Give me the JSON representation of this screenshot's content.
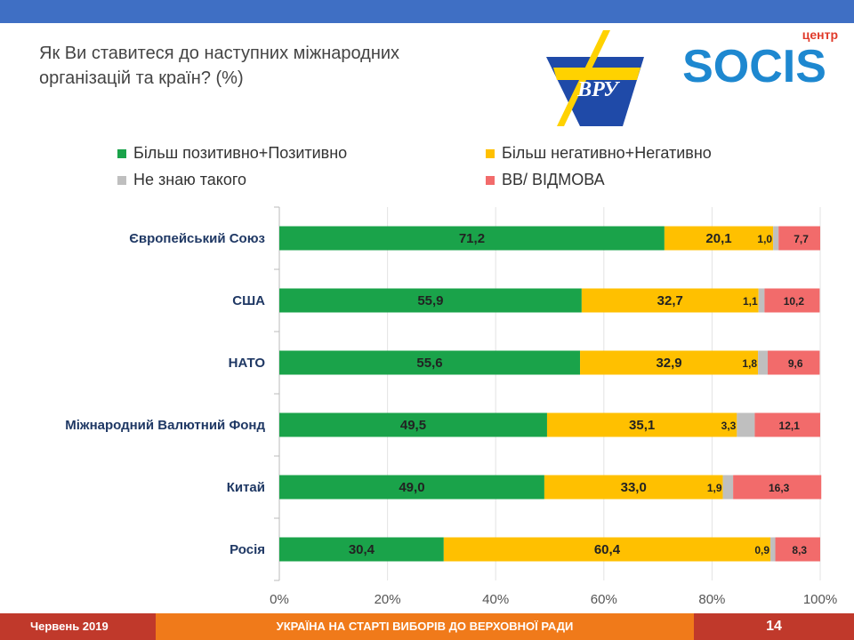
{
  "header": {
    "title_line1": "Як Ви ставитеся до наступних міжнародних",
    "title_line2": "організацій та країн? (%)"
  },
  "logos": {
    "vru": "ВРУ",
    "socis_small": "центр",
    "socis_main": "SOCIS"
  },
  "footer": {
    "date": "Червень 2019",
    "title": "УКРАЇНА НА СТАРТІ ВИБОРІВ ДО ВЕРХОВНОЇ РАДИ",
    "page": "14"
  },
  "chart_data": {
    "type": "bar",
    "orientation": "horizontal",
    "stacked": true,
    "categories": [
      "Європейський Союз",
      "США",
      "НАТО",
      "Міжнародний Валютний Фонд",
      "Китай",
      "Росія"
    ],
    "series": [
      {
        "name": "Більш позитивно+Позитивно",
        "color": "#1aa34a",
        "values": [
          71.2,
          55.9,
          55.6,
          49.5,
          49.0,
          30.4
        ],
        "labels": [
          "71,2",
          "55,9",
          "55,6",
          "49,5",
          "49,0",
          "30,4"
        ]
      },
      {
        "name": "Більш негативно+Негативно",
        "color": "#ffc000",
        "values": [
          20.1,
          32.7,
          32.9,
          35.1,
          33.0,
          60.4
        ],
        "labels": [
          "20,1",
          "32,7",
          "32,9",
          "35,1",
          "33,0",
          "60,4"
        ]
      },
      {
        "name": "Не знаю такого",
        "color": "#bfbfbf",
        "values": [
          1.0,
          1.1,
          1.8,
          3.3,
          1.9,
          0.9
        ],
        "labels": [
          "1,0",
          "1,1",
          "1,8",
          "3,3",
          "1,9",
          "0,9"
        ]
      },
      {
        "name": "ВВ/ ВІДМОВА",
        "color": "#f26b6b",
        "values": [
          7.7,
          10.2,
          9.6,
          12.1,
          16.3,
          8.3
        ],
        "labels": [
          "7,7",
          "10,2",
          "9,6",
          "12,1",
          "16,3",
          "8,3"
        ]
      }
    ],
    "xlim": [
      0,
      100
    ],
    "xticks": [
      "0%",
      "20%",
      "40%",
      "60%",
      "80%",
      "100%"
    ],
    "grid": true,
    "legend_position": "top"
  }
}
